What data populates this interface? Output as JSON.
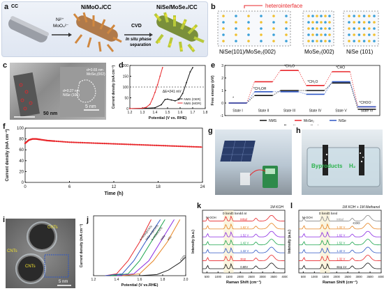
{
  "panels": {
    "a": {
      "label": "a",
      "cc": "CC",
      "ions_line1": "Ni²⁺",
      "ions_line2": "MoO₄²⁻",
      "precursor": "NiMoO₄/CC",
      "cvd": "CVD",
      "insitu_line1": "In situ phase",
      "insitu_line2": "separation",
      "product": "NiSe/MoSe₂/CC"
    },
    "b": {
      "label": "b",
      "heterointerface": "heterointerface",
      "struct1": "NiSe(101)/MoSe₂(002)",
      "struct2": "MoSe₂(002)",
      "struct3": "NiSe (101)"
    },
    "c": {
      "label": "c",
      "scale1": "50 nm",
      "scale2": "5 nm",
      "d1": "d=0.65 nm",
      "d1b": "MoSe₂(002)",
      "d2": "d=0.27 nm",
      "d2b": "NiSe (101)"
    },
    "d": {
      "label": "d",
      "delta": "ΔE=241 mV",
      "legend": [
        "NMS (OER)",
        "NMS (MOR)"
      ]
    },
    "e": {
      "label": "e",
      "states": [
        "State I",
        "State II",
        "State III",
        "State IV",
        "State V",
        "State VI"
      ],
      "species": [
        "*",
        "*CH₃OH",
        "*CH₂O",
        "*CHO",
        "*CH₂O",
        "*CHO",
        "*CHOO⁻"
      ]
    },
    "f": {
      "label": "f"
    },
    "g": {
      "label": "g"
    },
    "h": {
      "label": "h",
      "left_text": "Byproducts",
      "right_text": "H₂"
    },
    "i": {
      "label": "i",
      "cnts": [
        "CNTs",
        "CNTs",
        "CNTs"
      ],
      "scale": "5 nm"
    },
    "j": {
      "label": "j"
    },
    "k": {
      "label": "k",
      "title": "1M KOH",
      "annotations": [
        "Ni-OOH",
        "D band",
        "G band"
      ],
      "col_header": "Id at",
      "potentials": [
        "0.80V",
        "step",
        "1.32 V",
        "1.42 V",
        "1.52 V",
        "1.62 V",
        "initial"
      ]
    },
    "l": {
      "label": "l",
      "title": "1M KOH + 1M Methanol",
      "annotations": [
        "Ni-OOH",
        "D band",
        "G band",
        "-COO"
      ],
      "potentials": [
        "step 1V",
        "1.32 V",
        "1.42 V",
        "1.52 V",
        "1.62 V",
        "1.32 V",
        "initial"
      ]
    }
  },
  "chart_data": [
    {
      "panel": "d",
      "type": "line",
      "xlabel": "Potential (V vs. RHE)",
      "ylabel": "Current density (mA cm⁻²)",
      "xlim": [
        1.2,
        1.8
      ],
      "ylim": [
        0,
        200
      ],
      "xticks": [
        1.2,
        1.3,
        1.4,
        1.5,
        1.6,
        1.7,
        1.8
      ],
      "yticks": [
        0,
        50,
        100,
        150,
        200
      ],
      "hline": 100,
      "series": [
        {
          "name": "NMS (OER)",
          "color": "#111111",
          "x": [
            1.2,
            1.3,
            1.4,
            1.45,
            1.48,
            1.5,
            1.53,
            1.56,
            1.59,
            1.62,
            1.65,
            1.68,
            1.7
          ],
          "y": [
            0,
            1,
            4,
            18,
            42,
            44,
            40,
            36,
            42,
            70,
            120,
            170,
            190
          ]
        },
        {
          "name": "NMS (MOR)",
          "color": "#e8262a",
          "x": [
            1.2,
            1.3,
            1.33,
            1.36,
            1.38,
            1.4,
            1.42,
            1.44,
            1.46
          ],
          "y": [
            0,
            2,
            6,
            20,
            45,
            75,
            110,
            150,
            190
          ]
        }
      ]
    },
    {
      "panel": "e",
      "type": "line",
      "xlabel": "Reaction coordinate",
      "ylabel": "Free energy (eV)",
      "ylim": [
        -1,
        3
      ],
      "yticks": [
        -1,
        0,
        1,
        2,
        3
      ],
      "categories": [
        "State I",
        "State II",
        "State III",
        "State IV",
        "State V",
        "State VI"
      ],
      "series": [
        {
          "name": "NMS",
          "color": "#111111",
          "values": [
            0,
            0.6,
            1.0,
            1.0,
            1.6,
            -0.5
          ]
        },
        {
          "name": "MoSe₂",
          "color": "#e8262a",
          "values": [
            0,
            1.7,
            2.6,
            1.4,
            2.5,
            -0.3
          ]
        },
        {
          "name": "NiSe",
          "color": "#2d56c4",
          "values": [
            0,
            0.9,
            0.9,
            0.7,
            1.7,
            -0.3
          ]
        }
      ]
    },
    {
      "panel": "f",
      "type": "line",
      "xlabel": "Time (h)",
      "ylabel": "Current density (mA cm⁻²)",
      "xlim": [
        0,
        24
      ],
      "ylim": [
        0,
        100
      ],
      "xticks": [
        0,
        6,
        12,
        18,
        24
      ],
      "yticks": [
        0,
        20,
        40,
        60,
        80,
        100
      ],
      "series": [
        {
          "name": "",
          "color": "#e8262a",
          "x": [
            0,
            0.5,
            1,
            1.5,
            2,
            3,
            4,
            6,
            8,
            10,
            12,
            14,
            16,
            18,
            20,
            22,
            24
          ],
          "y": [
            72,
            78,
            80,
            80,
            79,
            77,
            76,
            74,
            73,
            72,
            71,
            70,
            69,
            68,
            67,
            66,
            65
          ]
        }
      ]
    },
    {
      "panel": "j",
      "type": "line",
      "xlabel": "Potential (V vs.RHE)",
      "ylabel": "Current density (mA cm⁻²)",
      "xlim": [
        1.2,
        2.0
      ],
      "xticks": [
        1.2,
        1.4,
        1.6,
        1.8,
        2.0
      ],
      "series": [
        {
          "name": "b-NiSe@CNTs",
          "color": "#e8262a",
          "x": [
            1.3,
            1.4,
            1.5,
            1.6,
            1.7
          ],
          "y": [
            0,
            5,
            40,
            90,
            150
          ]
        },
        {
          "name": "NiSe-m@CNTs",
          "color": "#2d56c4",
          "x": [
            1.3,
            1.45,
            1.55,
            1.65,
            1.78
          ],
          "y": [
            0,
            5,
            40,
            90,
            150
          ]
        },
        {
          "name": "b-NiSe/CNTs",
          "color": "#18a34a",
          "x": [
            1.35,
            1.5,
            1.6,
            1.7,
            1.82
          ],
          "y": [
            0,
            5,
            40,
            90,
            150
          ]
        },
        {
          "name": "NiSe",
          "color": "#8a2be2",
          "x": [
            1.4,
            1.55,
            1.68,
            1.78,
            1.9
          ],
          "y": [
            0,
            5,
            40,
            90,
            150
          ]
        },
        {
          "name": "IrO₂",
          "color": "#e6821e",
          "x": [
            1.45,
            1.6,
            1.72,
            1.84,
            1.95
          ],
          "y": [
            0,
            5,
            40,
            90,
            150
          ]
        },
        {
          "name": "CNTs",
          "color": "#222222",
          "x": [
            1.6,
            1.75,
            1.85,
            1.95,
            2.0
          ],
          "y": [
            0,
            3,
            15,
            35,
            50
          ]
        }
      ]
    },
    {
      "panel": "k",
      "type": "line",
      "xlabel": "Raman Shift (cm⁻¹)",
      "ylabel": "Intensity (a.u.)",
      "xlim": [
        300,
        4000
      ],
      "xticks": [
        500,
        1000,
        1500,
        2000,
        2500,
        3000,
        3500,
        4000
      ],
      "series": [
        {
          "name": "0.80V",
          "color": "#111111"
        },
        {
          "name": "step",
          "color": "#e8262a"
        },
        {
          "name": "1.32 V",
          "color": "#2d56c4"
        },
        {
          "name": "1.42 V",
          "color": "#18a34a"
        },
        {
          "name": "1.52 V",
          "color": "#8a2be2"
        },
        {
          "name": "1.62 V",
          "color": "#e6821e"
        },
        {
          "name": "initial",
          "color": "#e8262a"
        }
      ]
    },
    {
      "panel": "l",
      "type": "line",
      "xlabel": "Raman Shift (cm⁻¹)",
      "ylabel": "Intensity (a.u.)",
      "xlim": [
        300,
        4000
      ],
      "xticks": [
        500,
        1000,
        1500,
        2000,
        2500,
        3000,
        3500,
        4000
      ],
      "series": [
        {
          "name": "step 1V",
          "color": "#111111"
        },
        {
          "name": "1.32 V",
          "color": "#e8262a"
        },
        {
          "name": "1.42 V",
          "color": "#2d56c4"
        },
        {
          "name": "1.52 V",
          "color": "#18a34a"
        },
        {
          "name": "1.62 V",
          "color": "#8a2be2"
        },
        {
          "name": "1.32 V",
          "color": "#e6821e"
        },
        {
          "name": "initial",
          "color": "#888888"
        }
      ]
    }
  ]
}
